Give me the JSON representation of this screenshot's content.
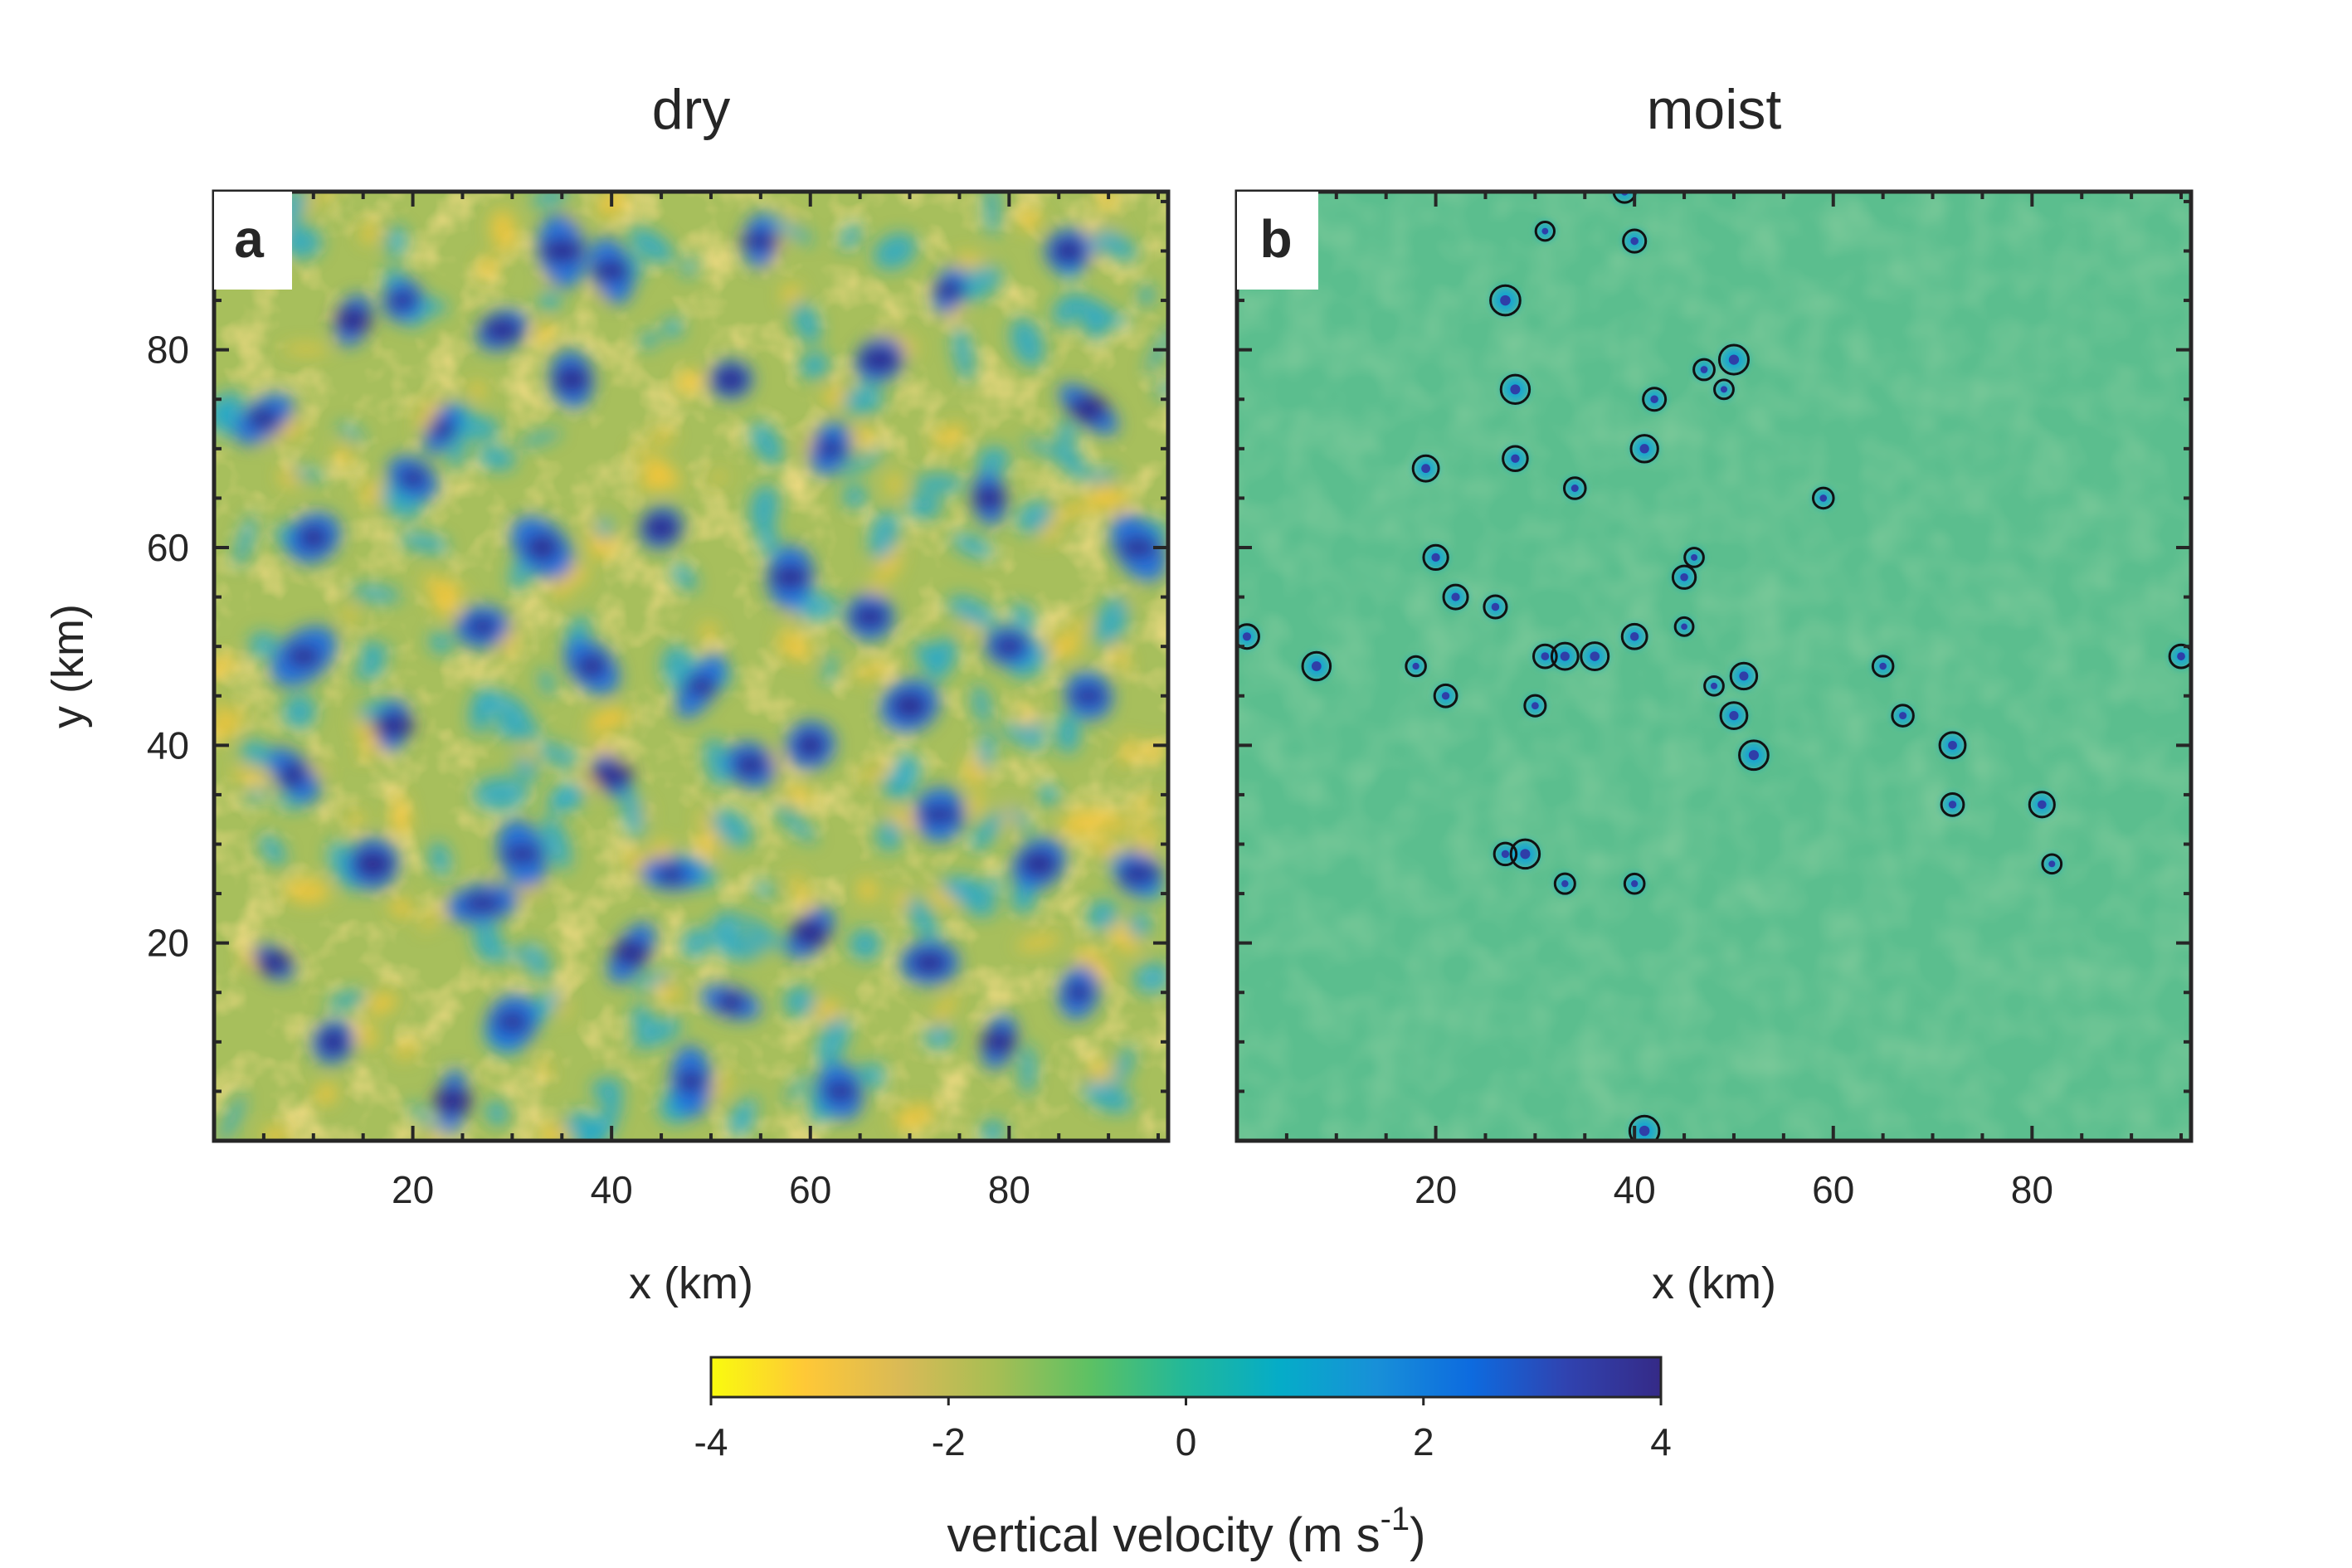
{
  "chart_data": [
    {
      "type": "heatmap",
      "panel_label": "a",
      "title": "dry",
      "xlabel": "x (km)",
      "ylabel": "y (km)",
      "xlim": [
        0,
        96
      ],
      "ylim": [
        0,
        96
      ],
      "x_ticks": [
        20,
        40,
        60,
        80
      ],
      "y_ticks": [
        20,
        40,
        60,
        80
      ],
      "field": "vertical velocity, dense mixture of updrafts and downdrafts",
      "updraft_cores": [
        [
          20,
          67
        ],
        [
          27,
          52
        ],
        [
          33,
          60
        ],
        [
          14,
          83
        ],
        [
          19,
          85
        ],
        [
          40,
          88
        ],
        [
          55,
          91
        ],
        [
          74,
          86
        ],
        [
          86,
          90
        ],
        [
          10,
          61
        ],
        [
          5,
          73
        ],
        [
          18,
          42
        ],
        [
          8,
          37
        ],
        [
          31,
          29
        ],
        [
          27,
          24
        ],
        [
          40,
          37
        ],
        [
          46,
          27
        ],
        [
          60,
          21
        ],
        [
          73,
          33
        ],
        [
          88,
          45
        ],
        [
          93,
          27
        ],
        [
          6,
          18
        ],
        [
          12,
          10
        ],
        [
          30,
          12
        ],
        [
          48,
          6
        ],
        [
          63,
          5
        ],
        [
          79,
          10
        ],
        [
          87,
          15
        ],
        [
          66,
          53
        ],
        [
          78,
          65
        ],
        [
          58,
          57
        ],
        [
          45,
          62
        ],
        [
          52,
          77
        ],
        [
          67,
          79
        ],
        [
          88,
          74
        ],
        [
          36,
          77
        ],
        [
          23,
          72
        ],
        [
          9,
          49
        ],
        [
          60,
          40
        ],
        [
          80,
          50
        ],
        [
          93,
          60
        ],
        [
          38,
          48
        ],
        [
          49,
          46
        ],
        [
          54,
          38
        ],
        [
          70,
          44
        ],
        [
          24,
          4
        ],
        [
          52,
          14
        ],
        [
          72,
          18
        ],
        [
          83,
          28
        ],
        [
          42,
          19
        ],
        [
          16,
          28
        ],
        [
          35,
          90
        ],
        [
          62,
          70
        ],
        [
          29,
          82
        ]
      ]
    },
    {
      "type": "heatmap",
      "panel_label": "b",
      "title": "moist",
      "xlabel": "x (km)",
      "ylabel": "",
      "xlim": [
        0,
        96
      ],
      "ylim": [
        0,
        96
      ],
      "x_ticks": [
        20,
        40,
        60,
        80
      ],
      "y_ticks": [
        20,
        40,
        60,
        80
      ],
      "field": "vertical velocity, near-zero background with isolated updraft cores outlined by black contours",
      "contoured_cells": [
        [
          31,
          92
        ],
        [
          40,
          91
        ],
        [
          27,
          85
        ],
        [
          28,
          76
        ],
        [
          47,
          78
        ],
        [
          50,
          79
        ],
        [
          49,
          76
        ],
        [
          41,
          70
        ],
        [
          42,
          75
        ],
        [
          19,
          68
        ],
        [
          28,
          69
        ],
        [
          34,
          66
        ],
        [
          59,
          65
        ],
        [
          20,
          59
        ],
        [
          22,
          55
        ],
        [
          26,
          54
        ],
        [
          45,
          57
        ],
        [
          45,
          52
        ],
        [
          46,
          59
        ],
        [
          1,
          51
        ],
        [
          8,
          48
        ],
        [
          18,
          48
        ],
        [
          21,
          45
        ],
        [
          30,
          44
        ],
        [
          31,
          49
        ],
        [
          33,
          49
        ],
        [
          36,
          49
        ],
        [
          40,
          51
        ],
        [
          48,
          46
        ],
        [
          51,
          47
        ],
        [
          50,
          43
        ],
        [
          52,
          39
        ],
        [
          65,
          48
        ],
        [
          67,
          43
        ],
        [
          72,
          40
        ],
        [
          72,
          34
        ],
        [
          81,
          34
        ],
        [
          82,
          28
        ],
        [
          95,
          49
        ],
        [
          27,
          29
        ],
        [
          29,
          29
        ],
        [
          33,
          26
        ],
        [
          40,
          26
        ],
        [
          41,
          1
        ],
        [
          39,
          96
        ]
      ]
    }
  ],
  "colorbar": {
    "label": "vertical velocity (m s",
    "label_exponent": "-1",
    "label_suffix": ")",
    "min": -4,
    "max": 4,
    "ticks": [
      -4,
      -2,
      0,
      2,
      4
    ],
    "tick_labels": [
      "-4",
      "-2",
      "0",
      "2",
      "4"
    ],
    "colors": [
      "#F9FB0E",
      "#FEC837",
      "#D9BA56",
      "#A6BE54",
      "#5CC164",
      "#21B89A",
      "#05ACC8",
      "#1890D8",
      "#0D6BDF",
      "#3043B0",
      "#352A87"
    ]
  }
}
